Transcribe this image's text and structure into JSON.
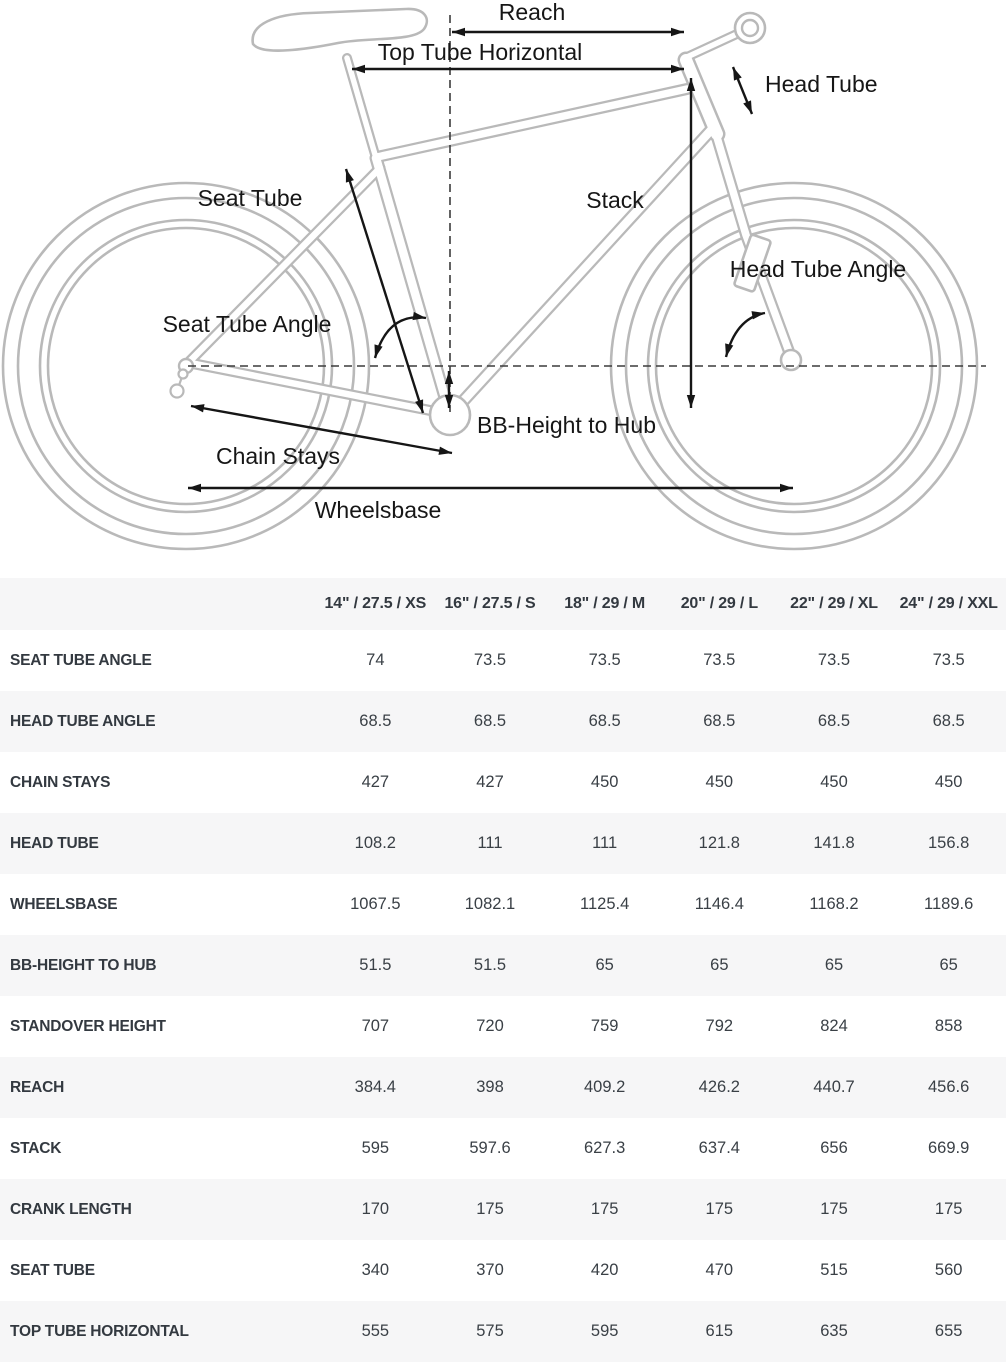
{
  "colors": {
    "stripe": "#f6f6f7",
    "table_text": "#333940",
    "bike_line": "#b9b9b9",
    "annotation": "#161616"
  },
  "diagram": {
    "labels": {
      "reach": "Reach",
      "top_tube_horizontal": "Top Tube Horizontal",
      "head_tube": "Head Tube",
      "seat_tube": "Seat Tube",
      "stack": "Stack",
      "head_tube_angle": "Head Tube Angle",
      "seat_tube_angle": "Seat Tube Angle",
      "bb_height_to_hub": "BB-Height to Hub",
      "chain_stays": "Chain Stays",
      "wheelsbase": "Wheelsbase"
    }
  },
  "table": {
    "columns": [
      "14\" / 27.5 / XS",
      "16\" / 27.5 / S",
      "18\" / 29 / M",
      "20\" / 29 / L",
      "22\" / 29 / XL",
      "24\" / 29 / XXL"
    ],
    "rows": [
      {
        "label": "SEAT TUBE ANGLE",
        "values": [
          "74",
          "73.5",
          "73.5",
          "73.5",
          "73.5",
          "73.5"
        ]
      },
      {
        "label": "HEAD TUBE ANGLE",
        "values": [
          "68.5",
          "68.5",
          "68.5",
          "68.5",
          "68.5",
          "68.5"
        ]
      },
      {
        "label": "CHAIN STAYS",
        "values": [
          "427",
          "427",
          "450",
          "450",
          "450",
          "450"
        ]
      },
      {
        "label": "HEAD TUBE",
        "values": [
          "108.2",
          "111",
          "111",
          "121.8",
          "141.8",
          "156.8"
        ]
      },
      {
        "label": "WHEELSBASE",
        "values": [
          "1067.5",
          "1082.1",
          "1125.4",
          "1146.4",
          "1168.2",
          "1189.6"
        ]
      },
      {
        "label": "BB-HEIGHT TO HUB",
        "values": [
          "51.5",
          "51.5",
          "65",
          "65",
          "65",
          "65"
        ]
      },
      {
        "label": "STANDOVER HEIGHT",
        "values": [
          "707",
          "720",
          "759",
          "792",
          "824",
          "858"
        ]
      },
      {
        "label": "REACH",
        "values": [
          "384.4",
          "398",
          "409.2",
          "426.2",
          "440.7",
          "456.6"
        ]
      },
      {
        "label": "STACK",
        "values": [
          "595",
          "597.6",
          "627.3",
          "637.4",
          "656",
          "669.9"
        ]
      },
      {
        "label": "CRANK LENGTH",
        "values": [
          "170",
          "175",
          "175",
          "175",
          "175",
          "175"
        ]
      },
      {
        "label": "SEAT TUBE",
        "values": [
          "340",
          "370",
          "420",
          "470",
          "515",
          "560"
        ]
      },
      {
        "label": "TOP TUBE HORIZONTAL",
        "values": [
          "555",
          "575",
          "595",
          "615",
          "635",
          "655"
        ]
      }
    ]
  }
}
